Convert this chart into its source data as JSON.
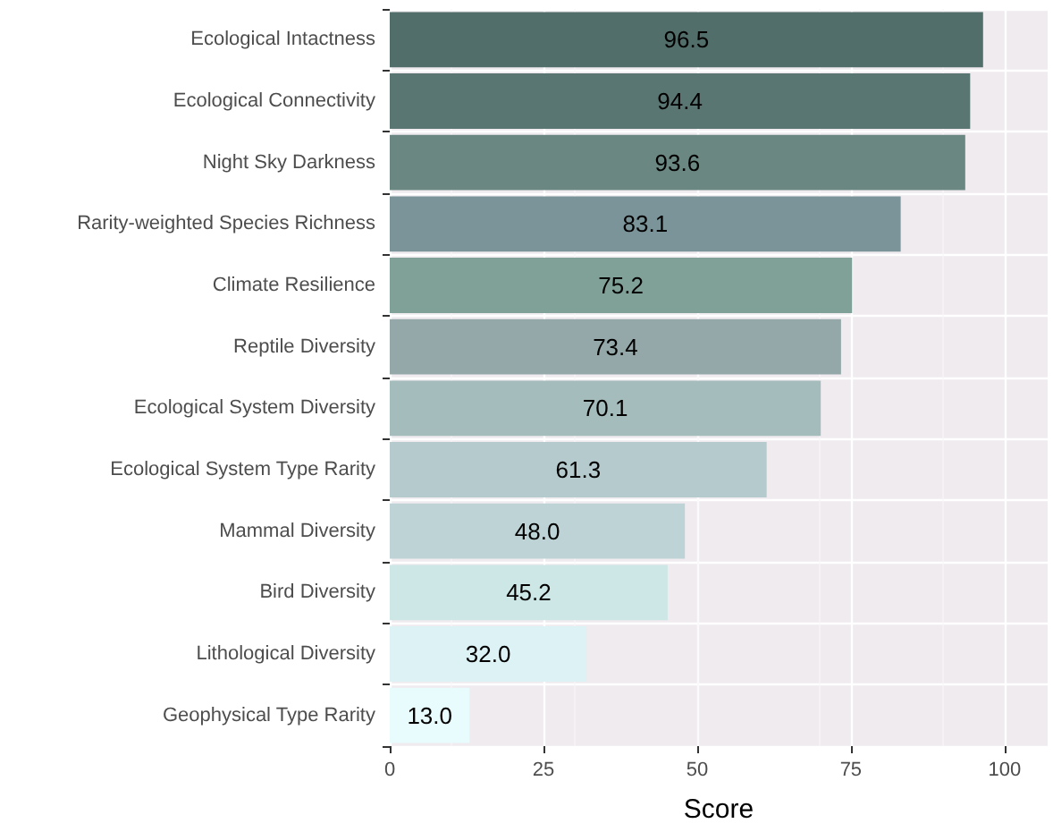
{
  "chart_data": {
    "type": "bar",
    "orientation": "horizontal",
    "xlabel": "Score",
    "categories": [
      "Ecological Intactness",
      "Ecological Connectivity",
      "Night Sky Darkness",
      "Rarity-weighted Species Richness",
      "Climate Resilience",
      "Reptile Diversity",
      "Ecological System Diversity",
      "Ecological System Type Rarity",
      "Mammal Diversity",
      "Bird Diversity",
      "Lithological Diversity",
      "Geophysical Type Rarity"
    ],
    "values": [
      96.5,
      94.4,
      93.6,
      83.1,
      75.2,
      73.4,
      70.1,
      61.3,
      48.0,
      45.2,
      32.0,
      13.0
    ],
    "value_labels": [
      "96.5",
      "94.4",
      "93.6",
      "83.1",
      "75.2",
      "73.4",
      "70.1",
      "61.3",
      "48.0",
      "45.2",
      "32.0",
      "13.0"
    ],
    "colors": [
      "#526e6a",
      "#5a7673",
      "#6b8782",
      "#7b949a",
      "#80a198",
      "#94a8a9",
      "#a4bcbb",
      "#b4cacc",
      "#bdd3d5",
      "#cde6e6",
      "#dcf2f5",
      "#e8fbfd"
    ],
    "xlim": [
      0,
      107
    ],
    "xticks": [
      0,
      25,
      50,
      75,
      100
    ],
    "grid": true
  }
}
